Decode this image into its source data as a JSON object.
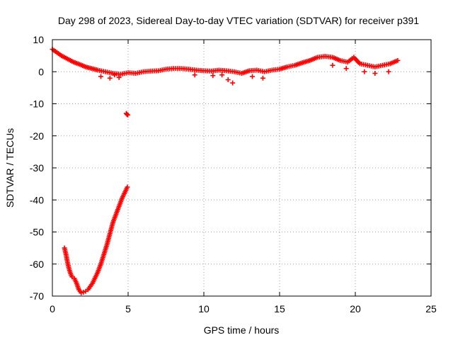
{
  "chart_data": {
    "type": "scatter",
    "title": "Day 298 of 2023, Sidereal Day-to-day VTEC variation (SDTVAR) for receiver p391",
    "xlabel": "GPS time / hours",
    "ylabel": "SDTVAR / TECUs",
    "xlim": [
      0,
      25
    ],
    "ylim": [
      -70,
      10
    ],
    "xticks": [
      0,
      5,
      10,
      15,
      20,
      25
    ],
    "yticks": [
      10,
      0,
      -10,
      -20,
      -30,
      -40,
      -50,
      -60,
      -70
    ],
    "grid": true,
    "marker": "plus",
    "color": "#ff0000",
    "series": [
      {
        "name": "near-zero trend",
        "x": [
          0.0,
          0.3,
          0.6,
          1.0,
          1.4,
          1.8,
          2.2,
          2.6,
          3.0,
          3.5,
          4.0,
          4.5,
          5.0,
          5.5,
          6.0,
          6.5,
          7.0,
          7.5,
          8.0,
          8.5,
          9.0,
          9.5,
          10.0,
          10.5,
          11.0,
          11.5,
          12.0,
          12.5,
          13.0,
          13.5,
          14.0,
          14.5,
          15.0,
          15.5,
          16.0,
          16.5,
          17.0,
          17.5,
          18.0,
          18.5,
          19.0,
          19.5,
          19.9,
          20.3,
          20.8,
          21.3,
          21.8,
          22.3,
          22.8
        ],
        "y": [
          7.0,
          6.0,
          5.0,
          4.0,
          3.0,
          2.3,
          1.5,
          1.0,
          0.5,
          0.0,
          -0.5,
          -0.8,
          -0.3,
          -0.5,
          0.0,
          0.2,
          0.3,
          0.8,
          1.0,
          1.0,
          0.8,
          0.5,
          0.3,
          0.2,
          0.5,
          0.3,
          0.0,
          -0.5,
          0.3,
          0.5,
          0.0,
          0.5,
          0.8,
          1.5,
          2.0,
          2.8,
          3.5,
          4.5,
          4.8,
          4.5,
          3.5,
          3.0,
          4.5,
          2.5,
          2.0,
          1.5,
          2.0,
          2.5,
          3.5
        ]
      },
      {
        "name": "scattered low points",
        "x": [
          3.2,
          3.8,
          4.1,
          4.4,
          9.4,
          10.6,
          11.2,
          11.6,
          11.9,
          13.2,
          13.9,
          18.5,
          19.4,
          20.6,
          21.3,
          22.2
        ],
        "y": [
          -1.5,
          -2.0,
          -1.0,
          -1.8,
          -1.0,
          -1.2,
          -1.0,
          -2.5,
          -3.5,
          -1.5,
          -2.0,
          2.0,
          1.0,
          0.0,
          -0.5,
          0.0
        ]
      },
      {
        "name": "outlier",
        "x": [
          4.88,
          4.92,
          4.98
        ],
        "y": [
          -13.0,
          -13.3,
          -13.5
        ]
      },
      {
        "name": "deep dip arc",
        "x": [
          0.8,
          0.9,
          1.0,
          1.1,
          1.2,
          1.3,
          1.45,
          1.6,
          1.75,
          1.9,
          2.05,
          2.2,
          2.35,
          2.5,
          2.65,
          2.8,
          3.0,
          3.2,
          3.4,
          3.6,
          3.8,
          4.0,
          4.2,
          4.4,
          4.6,
          4.8,
          4.95
        ],
        "y": [
          -55.0,
          -57.0,
          -59.5,
          -61.5,
          -63.0,
          -64.0,
          -64.5,
          -66.0,
          -68.0,
          -69.0,
          -68.8,
          -68.5,
          -68.0,
          -67.0,
          -66.0,
          -64.5,
          -62.5,
          -60.0,
          -57.0,
          -54.0,
          -50.5,
          -47.0,
          -44.5,
          -42.0,
          -39.5,
          -37.5,
          -36.0
        ]
      }
    ]
  }
}
